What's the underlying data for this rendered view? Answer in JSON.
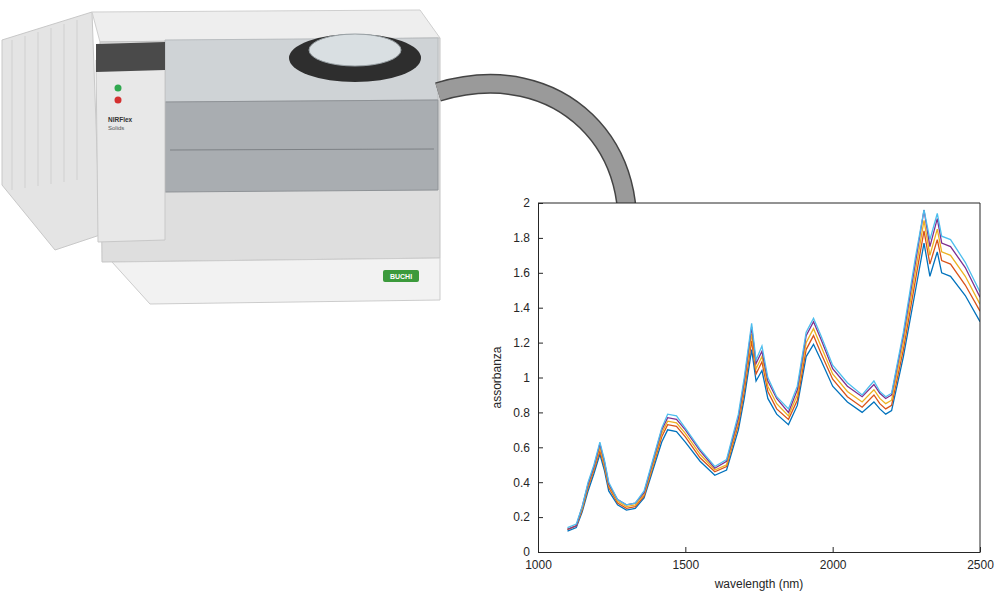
{
  "chart_data": {
    "type": "line",
    "xlabel": "wavelength (nm)",
    "ylabel": "assorbanza",
    "x": [
      1100,
      1130,
      1150,
      1170,
      1190,
      1210,
      1225,
      1240,
      1270,
      1300,
      1330,
      1360,
      1390,
      1420,
      1440,
      1470,
      1500,
      1550,
      1600,
      1640,
      1680,
      1700,
      1725,
      1740,
      1760,
      1780,
      1810,
      1850,
      1880,
      1910,
      1935,
      1960,
      2000,
      2050,
      2100,
      2140,
      2160,
      2180,
      2200,
      2240,
      2280,
      2310,
      2330,
      2355,
      2370,
      2400,
      2450,
      2500
    ],
    "series": [
      {
        "color": "#0072BD",
        "values": [
          0.12,
          0.14,
          0.23,
          0.35,
          0.45,
          0.56,
          0.47,
          0.35,
          0.27,
          0.24,
          0.25,
          0.31,
          0.47,
          0.63,
          0.7,
          0.69,
          0.63,
          0.52,
          0.44,
          0.47,
          0.7,
          0.88,
          1.16,
          0.98,
          1.04,
          0.88,
          0.79,
          0.73,
          0.84,
          1.12,
          1.19,
          1.1,
          0.95,
          0.86,
          0.8,
          0.86,
          0.82,
          0.79,
          0.81,
          1.12,
          1.49,
          1.77,
          1.58,
          1.72,
          1.6,
          1.58,
          1.47,
          1.32
        ]
      },
      {
        "color": "#D95319",
        "values": [
          0.13,
          0.15,
          0.24,
          0.37,
          0.47,
          0.58,
          0.49,
          0.37,
          0.28,
          0.25,
          0.26,
          0.32,
          0.49,
          0.66,
          0.73,
          0.72,
          0.66,
          0.54,
          0.46,
          0.49,
          0.73,
          0.92,
          1.21,
          1.02,
          1.09,
          0.92,
          0.82,
          0.76,
          0.87,
          1.16,
          1.24,
          1.14,
          0.99,
          0.89,
          0.83,
          0.9,
          0.85,
          0.82,
          0.84,
          1.16,
          1.55,
          1.84,
          1.65,
          1.79,
          1.67,
          1.65,
          1.53,
          1.38
        ]
      },
      {
        "color": "#EDB120",
        "values": [
          0.13,
          0.15,
          0.25,
          0.38,
          0.48,
          0.6,
          0.5,
          0.38,
          0.29,
          0.26,
          0.27,
          0.33,
          0.5,
          0.68,
          0.75,
          0.74,
          0.68,
          0.56,
          0.47,
          0.5,
          0.75,
          0.95,
          1.25,
          1.05,
          1.12,
          0.95,
          0.85,
          0.78,
          0.9,
          1.2,
          1.28,
          1.18,
          1.02,
          0.92,
          0.86,
          0.93,
          0.88,
          0.85,
          0.87,
          1.2,
          1.6,
          1.9,
          1.7,
          1.85,
          1.72,
          1.7,
          1.58,
          1.42
        ]
      },
      {
        "color": "#7E2F8E",
        "values": [
          0.13,
          0.15,
          0.26,
          0.39,
          0.49,
          0.62,
          0.52,
          0.39,
          0.3,
          0.27,
          0.28,
          0.34,
          0.52,
          0.7,
          0.77,
          0.76,
          0.7,
          0.58,
          0.48,
          0.52,
          0.77,
          0.98,
          1.29,
          1.08,
          1.15,
          0.98,
          0.88,
          0.8,
          0.93,
          1.24,
          1.32,
          1.22,
          1.05,
          0.95,
          0.89,
          0.96,
          0.91,
          0.88,
          0.9,
          1.24,
          1.65,
          1.96,
          1.75,
          1.91,
          1.77,
          1.75,
          1.63,
          1.46
        ]
      },
      {
        "color": "#4DBEEE",
        "values": [
          0.14,
          0.16,
          0.26,
          0.4,
          0.5,
          0.63,
          0.53,
          0.4,
          0.3,
          0.27,
          0.28,
          0.35,
          0.53,
          0.71,
          0.79,
          0.78,
          0.71,
          0.59,
          0.49,
          0.53,
          0.79,
          1.0,
          1.31,
          1.1,
          1.18,
          1.0,
          0.89,
          0.82,
          0.95,
          1.26,
          1.34,
          1.24,
          1.07,
          0.97,
          0.9,
          0.98,
          0.92,
          0.89,
          0.91,
          1.26,
          1.68,
          1.96,
          1.79,
          1.94,
          1.81,
          1.79,
          1.66,
          1.49
        ]
      }
    ],
    "xlim": [
      1000,
      2500
    ],
    "xticks": [
      1000,
      1500,
      2000,
      2500
    ],
    "ylim": [
      0,
      2
    ],
    "yticks": [
      0,
      0.2,
      0.4,
      0.6,
      0.8,
      1,
      1.2,
      1.4,
      1.6,
      1.8,
      2
    ],
    "grid": false
  },
  "instrument": {
    "model": "NIRFlex",
    "variant": "Solids",
    "brand": "BUCHI"
  }
}
